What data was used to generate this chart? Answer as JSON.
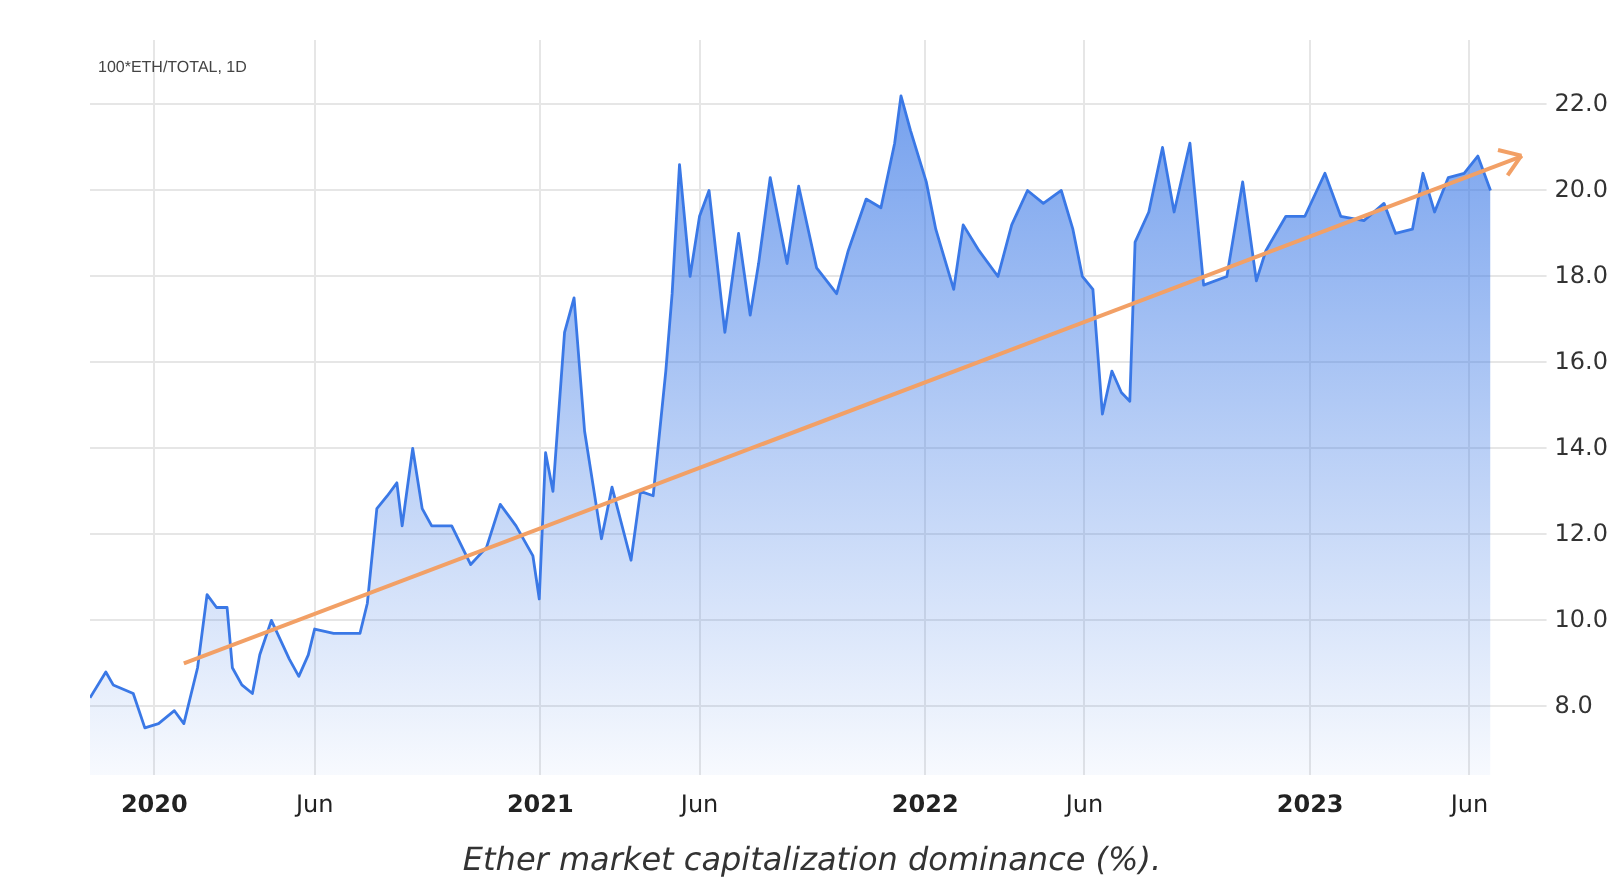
{
  "chart_data": {
    "type": "area",
    "annotations": [
      "100*ETH/TOTAL, 1D",
      "Ether market capitalization dominance (%)."
    ],
    "xlim": [
      "2019-11-01",
      "2023-07-29"
    ],
    "xticks": [
      {
        "value": "2020-01-01",
        "label": "2020"
      },
      {
        "value": "2020-06-01",
        "label": "Jun"
      },
      {
        "value": "2021-01-01",
        "label": "2021"
      },
      {
        "value": "2021-06-01",
        "label": "Jun"
      },
      {
        "value": "2022-01-01",
        "label": "2022"
      },
      {
        "value": "2022-06-01",
        "label": "Jun"
      },
      {
        "value": "2023-01-01",
        "label": "2023"
      },
      {
        "value": "2023-06-01",
        "label": "Jun"
      }
    ],
    "ylim": [
      6.4,
      23.5
    ],
    "yticks": [
      {
        "value": 8,
        "label": "8.0"
      },
      {
        "value": 10,
        "label": "10.0"
      },
      {
        "value": 12,
        "label": "12.0"
      },
      {
        "value": 14,
        "label": "14.0"
      },
      {
        "value": 16,
        "label": "16.0"
      },
      {
        "value": 18,
        "label": "18.0"
      },
      {
        "value": 20,
        "label": "20.0"
      },
      {
        "value": 22,
        "label": "22.0"
      }
    ],
    "grid": true,
    "legend": false,
    "series": [
      {
        "color": "#3a78e6",
        "x": [
          "2019-11-01",
          "2019-11-16",
          "2019-11-23",
          "2019-12-12",
          "2019-12-23",
          "2020-01-05",
          "2020-01-20",
          "2020-01-29",
          "2020-02-11",
          "2020-02-20",
          "2020-02-29",
          "2020-03-10",
          "2020-03-15",
          "2020-03-24",
          "2020-04-03",
          "2020-04-10",
          "2020-04-21",
          "2020-05-08",
          "2020-05-17",
          "2020-05-26",
          "2020-06-01",
          "2020-06-19",
          "2020-07-14",
          "2020-07-21",
          "2020-07-30",
          "2020-08-09",
          "2020-08-18",
          "2020-08-23",
          "2020-09-02",
          "2020-09-11",
          "2020-09-20",
          "2020-10-09",
          "2020-10-27",
          "2020-11-11",
          "2020-11-24",
          "2020-12-09",
          "2020-12-25",
          "2020-12-31",
          "2021-01-06",
          "2021-01-13",
          "2021-01-24",
          "2021-02-02",
          "2021-02-12",
          "2021-02-28",
          "2021-03-10",
          "2021-03-28",
          "2021-04-06",
          "2021-04-18",
          "2021-04-30",
          "2021-05-06",
          "2021-05-13",
          "2021-05-23",
          "2021-06-01",
          "2021-06-10",
          "2021-06-25",
          "2021-07-08",
          "2021-07-19",
          "2021-07-27",
          "2021-08-07",
          "2021-08-23",
          "2021-09-03",
          "2021-09-20",
          "2021-10-09",
          "2021-10-20",
          "2021-11-06",
          "2021-11-20",
          "2021-12-03",
          "2021-12-09",
          "2021-12-18",
          "2022-01-02",
          "2022-01-11",
          "2022-01-28",
          "2022-02-06",
          "2022-02-21",
          "2022-03-11",
          "2022-03-24",
          "2022-04-08",
          "2022-04-23",
          "2022-05-10",
          "2022-05-21",
          "2022-05-30",
          "2022-06-09",
          "2022-06-18",
          "2022-06-27",
          "2022-07-06",
          "2022-07-14",
          "2022-07-19",
          "2022-08-01",
          "2022-08-14",
          "2022-08-25",
          "2022-09-09",
          "2022-09-22",
          "2022-10-14",
          "2022-10-29",
          "2022-11-11",
          "2022-11-20",
          "2022-12-09",
          "2022-12-27",
          "2023-01-15",
          "2023-01-30",
          "2023-02-21",
          "2023-03-12",
          "2023-03-23",
          "2023-04-08",
          "2023-04-18",
          "2023-04-29",
          "2023-05-12",
          "2023-05-27",
          "2023-06-09",
          "2023-06-21"
        ],
        "values": [
          8.2,
          8.8,
          8.5,
          8.3,
          7.5,
          7.6,
          7.9,
          7.6,
          8.9,
          10.6,
          10.3,
          10.3,
          8.9,
          8.5,
          8.3,
          9.2,
          10.0,
          9.1,
          8.7,
          9.2,
          9.8,
          9.7,
          9.7,
          10.4,
          12.6,
          12.9,
          13.2,
          12.2,
          14.0,
          12.6,
          12.2,
          12.2,
          11.3,
          11.7,
          12.7,
          12.2,
          11.5,
          10.5,
          13.9,
          13.0,
          16.7,
          17.5,
          14.4,
          11.9,
          13.1,
          11.4,
          13.0,
          12.9,
          15.8,
          17.6,
          20.6,
          18.0,
          19.4,
          20.0,
          16.7,
          19.0,
          17.1,
          18.3,
          20.3,
          18.3,
          20.1,
          18.2,
          17.6,
          18.6,
          19.8,
          19.6,
          21.1,
          22.2,
          21.4,
          20.2,
          19.1,
          17.7,
          19.2,
          18.6,
          18.0,
          19.2,
          20.0,
          19.7,
          20.0,
          19.1,
          18.0,
          17.7,
          14.8,
          15.8,
          15.3,
          15.1,
          18.8,
          19.5,
          21.0,
          19.5,
          21.1,
          17.8,
          18.0,
          20.2,
          17.9,
          18.6,
          19.4,
          19.4,
          20.4,
          19.4,
          19.3,
          19.7,
          19.0,
          19.1,
          20.4,
          19.5,
          20.3,
          20.4,
          20.8,
          20.0
        ]
      },
      {
        "type": "line",
        "color": "#f2a066",
        "x": [
          "2020-01-29",
          "2023-07-21"
        ],
        "values": [
          9.0,
          20.8
        ]
      }
    ]
  }
}
